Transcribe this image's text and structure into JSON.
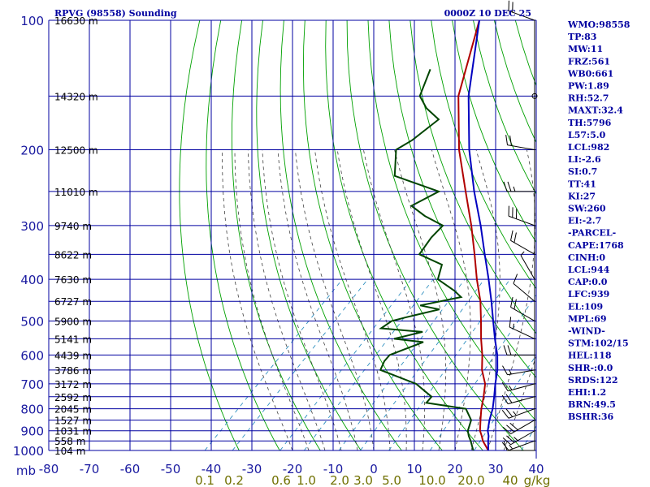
{
  "header": {
    "station": "RPVG (98558) Sounding",
    "time": "0000Z 10 DEC 25"
  },
  "chart_data": {
    "type": "skew-t",
    "pressure_axis_label": "mb",
    "pressure_levels": [
      100,
      200,
      300,
      400,
      500,
      600,
      700,
      800,
      900,
      1000
    ],
    "pressure_range": [
      100,
      1000
    ],
    "temperature_ticks": [
      -80,
      -70,
      -60,
      -50,
      -40,
      -30,
      -20,
      -10,
      0,
      10,
      20,
      30,
      40
    ],
    "temperature_tick_labels": [
      "-80",
      "-70",
      "-60",
      "-50",
      "-40",
      "-30",
      "-20",
      "-10",
      "0",
      "10",
      "20",
      "30",
      "40"
    ],
    "mixing_ratio_labels": [
      "0.1",
      "0.2",
      "0.6",
      "1.0",
      "2.0",
      "3.0",
      "5.0",
      "10.0",
      "20.0",
      "40",
      "g/kg"
    ],
    "height_labels": [
      {
        "p": 100,
        "label": "16630 m"
      },
      {
        "p": 150,
        "label": "14320 m"
      },
      {
        "p": 200,
        "label": "12500 m"
      },
      {
        "p": 250,
        "label": "11010 m"
      },
      {
        "p": 300,
        "label": "9740 m"
      },
      {
        "p": 350,
        "label": "8622 m"
      },
      {
        "p": 400,
        "label": "7630 m"
      },
      {
        "p": 450,
        "label": "6727 m"
      },
      {
        "p": 500,
        "label": "5900 m"
      },
      {
        "p": 550,
        "label": "5141 m"
      },
      {
        "p": 600,
        "label": "4439 m"
      },
      {
        "p": 650,
        "label": "3786 m"
      },
      {
        "p": 700,
        "label": "3172 m"
      },
      {
        "p": 750,
        "label": "2592 m"
      },
      {
        "p": 800,
        "label": "2045 m"
      },
      {
        "p": 850,
        "label": "1527 m"
      },
      {
        "p": 900,
        "label": "1031 m"
      },
      {
        "p": 950,
        "label": "558 m"
      },
      {
        "p": 1000,
        "label": "104 m"
      }
    ],
    "series": [
      {
        "name": "Temperature",
        "color": "#b00000",
        "points": [
          [
            1000,
            28.2
          ],
          [
            950,
            24.5
          ],
          [
            925,
            23
          ],
          [
            900,
            21.3
          ],
          [
            850,
            18.8
          ],
          [
            800,
            16.2
          ],
          [
            750,
            13.8
          ],
          [
            700,
            11
          ],
          [
            650,
            6.8
          ],
          [
            600,
            3.2
          ],
          [
            550,
            -1.1
          ],
          [
            500,
            -5.5
          ],
          [
            450,
            -10.5
          ],
          [
            400,
            -16.8
          ],
          [
            350,
            -23.5
          ],
          [
            300,
            -31.4
          ],
          [
            250,
            -41.2
          ],
          [
            200,
            -53.1
          ],
          [
            150,
            -66.5
          ],
          [
            100,
            -80
          ]
        ]
      },
      {
        "name": "Dewpoint",
        "color": "#004400",
        "points": [
          [
            1000,
            24.5
          ],
          [
            950,
            21.5
          ],
          [
            925,
            19.8
          ],
          [
            900,
            18.3
          ],
          [
            850,
            16.5
          ],
          [
            800,
            12.4
          ],
          [
            775,
            1.2
          ],
          [
            750,
            1.0
          ],
          [
            700,
            -6
          ],
          [
            650,
            -18.2
          ],
          [
            620,
            -19.4
          ],
          [
            600,
            -19.6
          ],
          [
            560,
            -14.5
          ],
          [
            550,
            -22.5
          ],
          [
            530,
            -17.2
          ],
          [
            520,
            -28.3
          ],
          [
            500,
            -27.5
          ],
          [
            490,
            -24.8
          ],
          [
            470,
            -18.6
          ],
          [
            460,
            -24.3
          ],
          [
            440,
            -16.3
          ],
          [
            425,
            -19.6
          ],
          [
            400,
            -26.4
          ],
          [
            370,
            -29
          ],
          [
            350,
            -37.1
          ],
          [
            320,
            -38.3
          ],
          [
            300,
            -38.4
          ],
          [
            285,
            -45.2
          ],
          [
            270,
            -51
          ],
          [
            250,
            -47.8
          ],
          [
            230,
            -62.5
          ],
          [
            200,
            -68.6
          ],
          [
            190,
            -67
          ],
          [
            170,
            -65.6
          ],
          [
            160,
            -71.4
          ],
          [
            150,
            -76
          ],
          [
            130,
            -80
          ]
        ]
      },
      {
        "name": "Parcel",
        "color": "#0000c0",
        "points": [
          [
            1000,
            28.2
          ],
          [
            950,
            25.8
          ],
          [
            925,
            24.7
          ],
          [
            900,
            23.2
          ],
          [
            850,
            21
          ],
          [
            800,
            19
          ],
          [
            750,
            16.4
          ],
          [
            700,
            13.5
          ],
          [
            650,
            10.6
          ],
          [
            600,
            6.9
          ],
          [
            550,
            2.3
          ],
          [
            500,
            -2.5
          ],
          [
            450,
            -7.8
          ],
          [
            400,
            -13.9
          ],
          [
            350,
            -21
          ],
          [
            300,
            -29.1
          ],
          [
            250,
            -39.1
          ],
          [
            200,
            -50.6
          ],
          [
            150,
            -64
          ],
          [
            100,
            -80
          ]
        ]
      }
    ],
    "wind_barbs": [
      {
        "p": 1000,
        "dir": 270,
        "spd": 10
      },
      {
        "p": 950,
        "dir": 250,
        "spd": 15
      },
      {
        "p": 900,
        "dir": 240,
        "spd": 25
      },
      {
        "p": 850,
        "dir": 240,
        "spd": 30
      },
      {
        "p": 800,
        "dir": 250,
        "spd": 25
      },
      {
        "p": 750,
        "dir": 255,
        "spd": 20
      },
      {
        "p": 700,
        "dir": 255,
        "spd": 15
      },
      {
        "p": 650,
        "dir": 260,
        "spd": 15
      },
      {
        "p": 600,
        "dir": 270,
        "spd": 20
      },
      {
        "p": 550,
        "dir": 295,
        "spd": 15
      },
      {
        "p": 500,
        "dir": 300,
        "spd": 20
      },
      {
        "p": 450,
        "dir": 310,
        "spd": 10
      },
      {
        "p": 400,
        "dir": 330,
        "spd": 5
      },
      {
        "p": 350,
        "dir": 300,
        "spd": 20
      },
      {
        "p": 300,
        "dir": 290,
        "spd": 30
      },
      {
        "p": 250,
        "dir": 270,
        "spd": 25
      },
      {
        "p": 200,
        "dir": 280,
        "spd": 20
      },
      {
        "p": 150,
        "dir": 0,
        "spd": 0
      },
      {
        "p": 100,
        "dir": 290,
        "spd": 20
      }
    ]
  },
  "indices": [
    "WMO:98558",
    "TP:83",
    "MW:11",
    "FRZ:561",
    "WB0:661",
    "PW:1.89",
    "RH:52.7",
    "MAXT:32.4",
    "TH:5796",
    "L57:5.0",
    "LCL:982",
    "LI:-2.6",
    "SI:0.7",
    "TT:41",
    "KI:27",
    "SW:260",
    "EI:-2.7",
    "-PARCEL-",
    "CAPE:1768",
    "CINH:0",
    "LCL:944",
    "CAP:0.0",
    "LFC:939",
    "EL:109",
    "MPL:69",
    "-WIND-",
    "STM:102/15",
    "HEL:118",
    "SHR-:0.0",
    "SRDS:122",
    "EHI:1.2",
    "BRN:49.5",
    "BSHR:36"
  ],
  "colors": {
    "grid": "#0000a0",
    "dry_adiabat": "#00a000",
    "moist_adiabat": "#404040",
    "mixing_ratio": "#3090c0",
    "temperature": "#b00000",
    "dewpoint": "#004400",
    "parcel": "#0000c0"
  }
}
